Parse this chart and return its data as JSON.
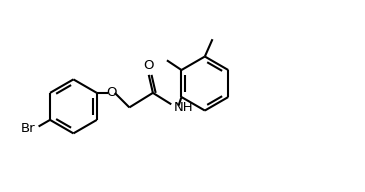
{
  "bg_color": "#ffffff",
  "line_color": "#000000",
  "line_width": 1.5,
  "font_size": 9.5,
  "figsize": [
    3.65,
    1.92
  ],
  "dpi": 100,
  "xlim": [
    0.0,
    10.5
  ],
  "ylim": [
    0.5,
    5.8
  ]
}
